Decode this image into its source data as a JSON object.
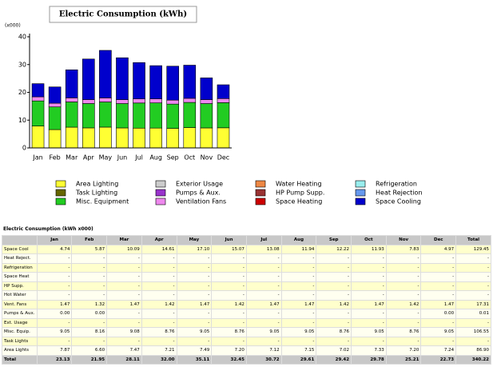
{
  "chart_data": {
    "type": "stacked-bar",
    "title": "Electric Consumption (kWh)",
    "y_label": "(x000)",
    "categories": [
      "Jan",
      "Feb",
      "Mar",
      "Apr",
      "May",
      "Jun",
      "Jul",
      "Aug",
      "Sep",
      "Oct",
      "Nov",
      "Dec"
    ],
    "ylim": [
      0,
      40
    ],
    "yticks": [
      0,
      10,
      20,
      30,
      40
    ],
    "series": [
      {
        "name": "Area Lighting",
        "color": "#ffff33",
        "values": [
          7.87,
          6.6,
          7.47,
          7.21,
          7.49,
          7.2,
          7.12,
          7.15,
          7.02,
          7.33,
          7.2,
          7.24
        ]
      },
      {
        "name": "Task Lighting",
        "color": "#666600",
        "values": [
          0,
          0,
          0,
          0,
          0,
          0,
          0,
          0,
          0,
          0,
          0,
          0
        ]
      },
      {
        "name": "Misc. Equipment",
        "color": "#22cc22",
        "values": [
          9.05,
          8.16,
          9.08,
          8.76,
          9.05,
          8.76,
          9.05,
          9.05,
          8.76,
          9.05,
          8.76,
          9.05
        ]
      },
      {
        "name": "Exterior Usage",
        "color": "#cccccc",
        "values": [
          0,
          0,
          0,
          0,
          0,
          0,
          0,
          0,
          0,
          0,
          0,
          0
        ]
      },
      {
        "name": "Pumps & Aux.",
        "color": "#9933cc",
        "values": [
          0,
          0,
          0,
          0,
          0,
          0,
          0,
          0,
          0,
          0,
          0,
          0
        ]
      },
      {
        "name": "Ventilation Fans",
        "color": "#ee88ee",
        "values": [
          1.47,
          1.32,
          1.47,
          1.42,
          1.47,
          1.42,
          1.47,
          1.47,
          1.42,
          1.47,
          1.42,
          1.47
        ]
      },
      {
        "name": "Water Heating",
        "color": "#ee8844",
        "values": [
          0,
          0,
          0,
          0,
          0,
          0,
          0,
          0,
          0,
          0,
          0,
          0
        ]
      },
      {
        "name": "HP Pump Supp.",
        "color": "#993333",
        "values": [
          0,
          0,
          0,
          0,
          0,
          0,
          0,
          0,
          0,
          0,
          0,
          0
        ]
      },
      {
        "name": "Space Heating",
        "color": "#cc0000",
        "values": [
          0,
          0,
          0,
          0,
          0,
          0,
          0,
          0,
          0,
          0,
          0,
          0
        ]
      },
      {
        "name": "Refrigeration",
        "color": "#99eeee",
        "values": [
          0,
          0,
          0,
          0,
          0,
          0,
          0,
          0,
          0,
          0,
          0,
          0
        ]
      },
      {
        "name": "Heat Rejection",
        "color": "#6699ee",
        "values": [
          0,
          0,
          0,
          0,
          0,
          0,
          0,
          0,
          0,
          0,
          0,
          0
        ]
      },
      {
        "name": "Space Cooling",
        "color": "#0000cc",
        "values": [
          4.74,
          5.87,
          10.09,
          14.61,
          17.1,
          15.07,
          13.08,
          11.94,
          12.22,
          11.93,
          7.83,
          4.97
        ]
      }
    ]
  },
  "table": {
    "title": "Electric Consumption (kWh x000)",
    "columns": [
      "Jan",
      "Feb",
      "Mar",
      "Apr",
      "May",
      "Jun",
      "Jul",
      "Aug",
      "Sep",
      "Oct",
      "Nov",
      "Dec",
      "Total"
    ],
    "rows": [
      [
        "Space Cool",
        "4.74",
        "5.87",
        "10.09",
        "14.61",
        "17.10",
        "15.07",
        "13.08",
        "11.94",
        "12.22",
        "11.93",
        "7.83",
        "4.97",
        "129.45"
      ],
      [
        "Heat Reject.",
        "-",
        "-",
        "-",
        "-",
        "-",
        "-",
        "-",
        "-",
        "-",
        "-",
        "-",
        "-",
        "-"
      ],
      [
        "Refrigeration",
        "-",
        "-",
        "-",
        "-",
        "-",
        "-",
        "-",
        "-",
        "-",
        "-",
        "-",
        "-",
        "-"
      ],
      [
        "Space Heat",
        "-",
        "-",
        "-",
        "-",
        "-",
        "-",
        "-",
        "-",
        "-",
        "-",
        "-",
        "-",
        "-"
      ],
      [
        "HP Supp.",
        "-",
        "-",
        "-",
        "-",
        "-",
        "-",
        "-",
        "-",
        "-",
        "-",
        "-",
        "-",
        "-"
      ],
      [
        "Hot Water",
        "-",
        "-",
        "-",
        "-",
        "-",
        "-",
        "-",
        "-",
        "-",
        "-",
        "-",
        "-",
        "-"
      ],
      [
        "Vent. Fans",
        "1.47",
        "1.32",
        "1.47",
        "1.42",
        "1.47",
        "1.42",
        "1.47",
        "1.47",
        "1.42",
        "1.47",
        "1.42",
        "1.47",
        "17.31"
      ],
      [
        "Pumps & Aux.",
        "0.00",
        "0.00",
        "-",
        "-",
        "-",
        "-",
        "-",
        "-",
        "-",
        "-",
        "-",
        "0.00",
        "0.01"
      ],
      [
        "Ext. Usage",
        "-",
        "-",
        "-",
        "-",
        "-",
        "-",
        "-",
        "-",
        "-",
        "-",
        "-",
        "-",
        "-"
      ],
      [
        "Misc. Equip.",
        "9.05",
        "8.16",
        "9.08",
        "8.76",
        "9.05",
        "8.76",
        "9.05",
        "9.05",
        "8.76",
        "9.05",
        "8.76",
        "9.05",
        "106.55"
      ],
      [
        "Task Lights",
        "-",
        "-",
        "-",
        "-",
        "-",
        "-",
        "-",
        "-",
        "-",
        "-",
        "-",
        "-",
        "-"
      ],
      [
        "Area Lights",
        "7.87",
        "6.60",
        "7.47",
        "7.21",
        "7.49",
        "7.20",
        "7.12",
        "7.15",
        "7.02",
        "7.33",
        "7.20",
        "7.24",
        "86.90"
      ],
      [
        "Total",
        "23.13",
        "21.95",
        "28.11",
        "32.00",
        "35.11",
        "32.45",
        "30.72",
        "29.61",
        "29.42",
        "29.78",
        "25.21",
        "22.73",
        "340.22"
      ]
    ]
  }
}
